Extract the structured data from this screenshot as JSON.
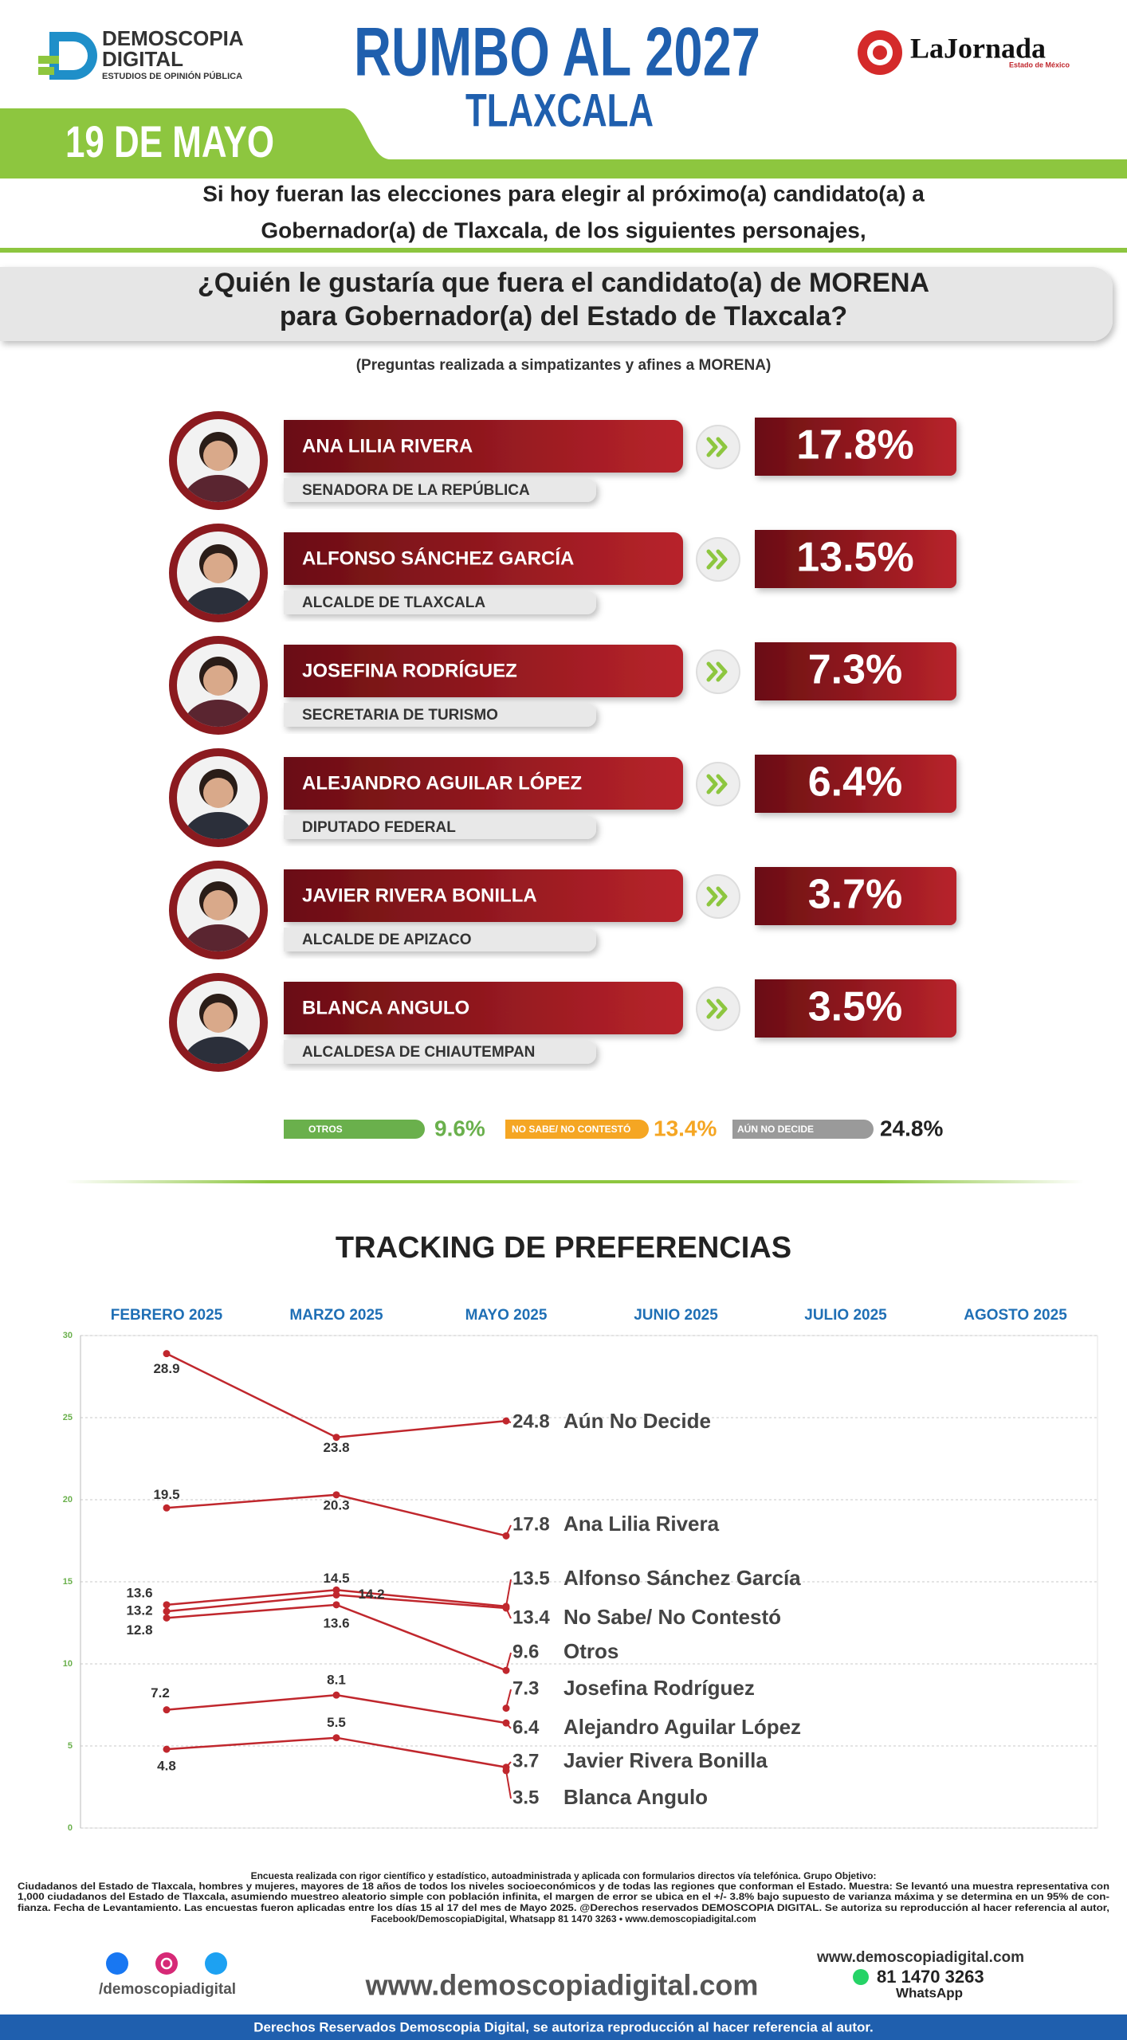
{
  "header": {
    "brand": "DEMOSCOPIA",
    "brand2": "DIGITAL",
    "brand_tag": "ESTUDIOS DE OPINIÓN PÚBLICA",
    "title": "RUMBO AL 2027",
    "subtitle": "TLAXCALA",
    "date": "19 DE MAYO",
    "partner": "LaJornada",
    "partner_tag": "Estado de México"
  },
  "intro": [
    "Si hoy fueran las elecciones para elegir al próximo(a) candidato(a) a",
    "Gobernador(a) de Tlaxcala, de los siguientes personajes,"
  ],
  "question": [
    "¿Quién le gustaría que fuera el candidato(a) de MORENA",
    "para Gobernador(a) del Estado de Tlaxcala?"
  ],
  "note": "(Preguntas realizada a simpatizantes y afines a MORENA)",
  "candidates": [
    {
      "name": "ANA LILIA RIVERA",
      "role": "SENADORA DE LA REPÚBLICA",
      "percent": "17.8%"
    },
    {
      "name": "ALFONSO SÁNCHEZ GARCÍA",
      "role": "ALCALDE DE TLAXCALA",
      "percent": "13.5%"
    },
    {
      "name": "JOSEFINA RODRÍGUEZ",
      "role": "SECRETARIA DE TURISMO",
      "percent": "7.3%"
    },
    {
      "name": "ALEJANDRO AGUILAR LÓPEZ",
      "role": "DIPUTADO FEDERAL",
      "percent": "6.4%"
    },
    {
      "name": "JAVIER RIVERA BONILLA",
      "role": "ALCALDE DE APIZACO",
      "percent": "3.7%"
    },
    {
      "name": "BLANCA ANGULO",
      "role": "ALCALDESA DE CHIAUTEMPAN",
      "percent": "3.5%"
    }
  ],
  "others": [
    {
      "label": "OTROS",
      "percent": "9.6%",
      "color": "#6ab04c"
    },
    {
      "label": "NO SABE/ NO CONTESTÓ",
      "percent": "13.4%",
      "color": "#f5a623"
    },
    {
      "label": "AÚN NO DECIDE",
      "percent": "24.8%",
      "color": "#9a9a9a"
    }
  ],
  "chart_data": {
    "type": "line",
    "title": "TRACKING DE PREFERENCIAS",
    "categories": [
      "FEBRERO 2025",
      "MARZO 2025",
      "MAYO 2025",
      "JUNIO 2025",
      "JULIO 2025",
      "AGOSTO 2025"
    ],
    "ylim": [
      0,
      30
    ],
    "yticks": [
      0,
      5,
      10,
      15,
      20,
      25,
      30
    ],
    "grid": true,
    "color": "#c0272d",
    "series": [
      {
        "name": "Aún No Decide",
        "values": [
          28.9,
          23.8,
          24.8,
          null,
          null,
          null
        ]
      },
      {
        "name": "Ana Lilia Rivera",
        "values": [
          19.5,
          20.3,
          17.8,
          null,
          null,
          null
        ]
      },
      {
        "name": "Alfonso Sánchez García",
        "values": [
          13.6,
          14.5,
          13.5,
          null,
          null,
          null
        ]
      },
      {
        "name": "No Sabe/ No Contestó",
        "values": [
          13.2,
          14.2,
          13.4,
          null,
          null,
          null
        ]
      },
      {
        "name": "Otros",
        "values": [
          12.8,
          13.6,
          9.6,
          null,
          null,
          null
        ]
      },
      {
        "name": "Josefina Rodríguez",
        "values": [
          null,
          null,
          7.3,
          null,
          null,
          null
        ]
      },
      {
        "name": "Alejandro Aguilar López",
        "values": [
          7.2,
          8.1,
          6.4,
          null,
          null,
          null
        ]
      },
      {
        "name": "Javier Rivera Bonilla",
        "values": [
          4.8,
          5.5,
          3.7,
          null,
          null,
          null
        ]
      },
      {
        "name": "Blanca Angulo",
        "values": [
          null,
          null,
          3.5,
          null,
          null,
          null
        ]
      }
    ]
  },
  "footer": {
    "methodology": [
      "Encuesta realizada con rigor científico y estadístico, autoadministrada y aplicada con formularios directos vía telefónica. Grupo Objetivo:",
      "Ciudadanos del Estado de Tlaxcala, hombres y mujeres, mayores de 18 años de todos los niveles socioeconómicos y de todas las regiones que conforman el Estado. Muestra: Se levantó una muestra representativa con",
      "1,000 ciudadanos del Estado de Tlaxcala, asumiendo muestreo aleatorio simple con población infinita, el margen de error se ubica en el +/- 3.8% bajo supuesto de varianza máxima y se determina en un 95% de con-",
      "fianza. Fecha de Levantamiento. Las encuestas fueron aplicadas entre los días 15 al 17 del mes de Mayo 2025. @Derechos reservados DEMOSCOPIA DIGITAL. Se autoriza su reproducción al hacer referencia al autor,",
      "Facebook/DemoscopiaDigital, Whatsapp 81 1470 3263 • www.demoscopiadigital.com"
    ],
    "social": "/demoscopiadigital",
    "url": "www.demoscopiadigital.com",
    "site": "www.demoscopiadigital.com",
    "phone": "81 1470 3263",
    "whatsapp": "WhatsApp",
    "copyright": "Derechos Reservados Demoscopia Digital, se autoriza reproducción al hacer referencia al autor."
  }
}
